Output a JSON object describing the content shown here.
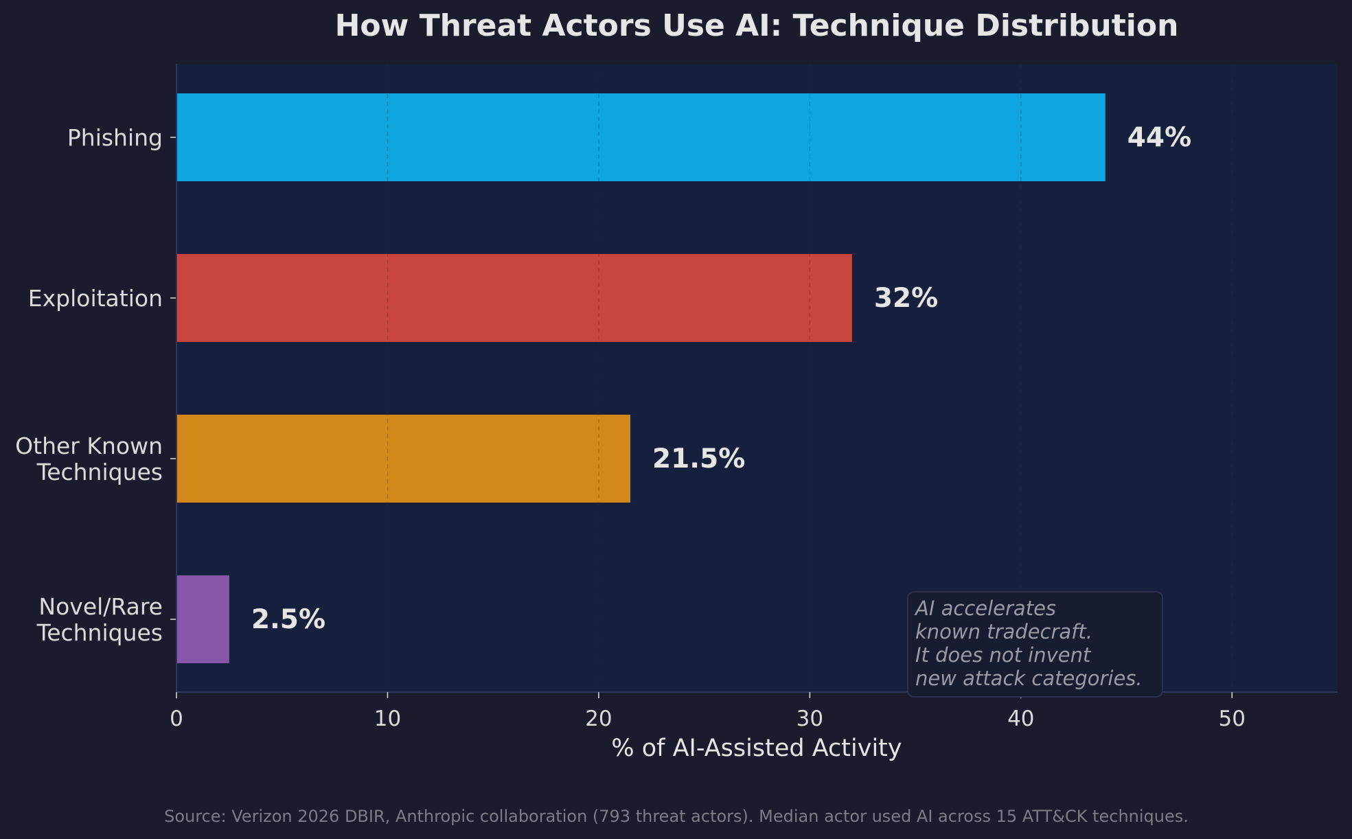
{
  "colors": {
    "page_background": "#1b1b2e",
    "plot_background": "#16203d",
    "axis_spine": "#2e3557",
    "grid": "#3a4566",
    "text": "#e6e6e6",
    "note_text": "#9a9aa6",
    "source_text": "#7c7c88"
  },
  "chart_data": {
    "type": "bar",
    "orientation": "horizontal",
    "title": "How Threat Actors Use AI: Technique Distribution",
    "xlabel": "% of AI-Assisted Activity",
    "ylabel": "",
    "xlim": [
      0,
      55
    ],
    "xticks": [
      0,
      10,
      20,
      30,
      40,
      50
    ],
    "grid": "vertical dashed lines at x ticks",
    "categories": [
      "Phishing",
      "Exploitation",
      "Other Known\nTechniques",
      "Novel/Rare\nTechniques"
    ],
    "values": [
      44,
      32,
      21.5,
      2.5
    ],
    "value_labels": [
      "44%",
      "32%",
      "21.5%",
      "2.5%"
    ],
    "bar_colors": [
      "#0ea5e0",
      "#c9463e",
      "#d3891a",
      "#8856a8"
    ],
    "annotation": "AI accelerates\nknown tradecraft.\nIt does not invent\nnew attack categories.",
    "annotation_position": "bottom-right"
  },
  "footer": {
    "source": "Source: Verizon 2026 DBIR, Anthropic collaboration (793 threat actors). Median actor used AI across 15 ATT&CK techniques."
  }
}
